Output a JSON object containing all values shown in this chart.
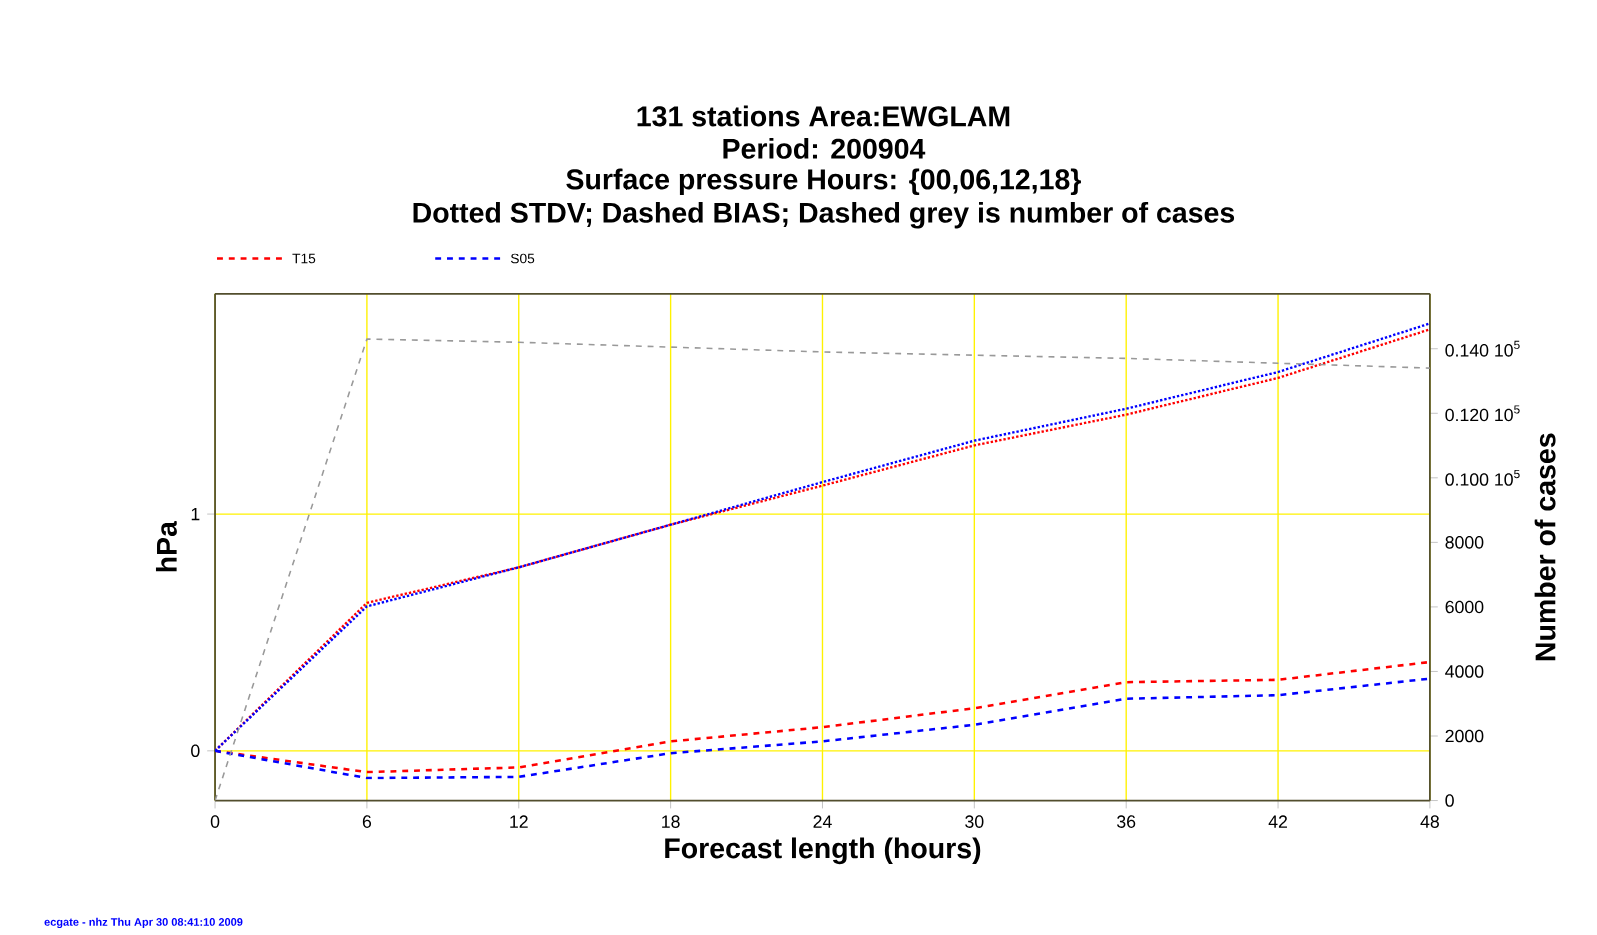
{
  "chart_data": {
    "type": "line",
    "title": "131 stations Area:EWGLAM",
    "subtitle": "Period: 200904",
    "annotations": [
      "Surface pressure Hours: {00,06,12,18}",
      "Dotted STDV; Dashed BIAS; Dashed grey is number of cases",
      "ecgate - nhz Thu Apr 30 08:41:10 2009"
    ],
    "xlabel": "Forecast length (hours)",
    "ylabel": "hPa",
    "y2label": "Number of cases",
    "x": [
      0,
      6,
      12,
      18,
      24,
      30,
      36,
      42,
      48
    ],
    "xlim": [
      0,
      48
    ],
    "xticks": [
      0,
      6,
      12,
      18,
      24,
      30,
      36,
      42,
      48
    ],
    "ylim": [
      -0.21,
      1.93
    ],
    "yticks": [
      0,
      1
    ],
    "y2lim": [
      0,
      15700
    ],
    "y2ticks": [
      0,
      2000,
      4000,
      6000,
      8000,
      {
        "value": 10000,
        "label": "0.100 10$^{5}$"
      },
      {
        "value": 12000,
        "label": "0.120 10$^{5}$"
      },
      {
        "value": 14000,
        "label": "0.140 10$^{5}$"
      }
    ],
    "grid": true,
    "legend": "top left",
    "series": [
      {
        "name": "T15",
        "color": "#ff0000",
        "line_style": "dashed",
        "values": [
          0,
          -0.09,
          -0.07,
          0.04,
          0.1,
          0.18,
          0.29,
          0.3,
          0.375
        ]
      },
      {
        "color": "#ff0000",
        "line_style": "dotted",
        "values": [
          0,
          0.625,
          0.775,
          0.955,
          1.12,
          1.29,
          1.42,
          1.575,
          1.78
        ]
      },
      {
        "name": "S05",
        "color": "#0000ff",
        "line_style": "dashed",
        "values": [
          0,
          -0.115,
          -0.11,
          -0.01,
          0.04,
          0.11,
          0.22,
          0.235,
          0.305
        ]
      },
      {
        "color": "#0000ff",
        "line_style": "dotted",
        "values": [
          0,
          0.61,
          0.775,
          0.955,
          1.135,
          1.31,
          1.445,
          1.6,
          1.805
        ]
      },
      {
        "color": "#999999",
        "line_style": "dashed",
        "axis": "y2",
        "values": [
          0,
          14300,
          14200,
          14050,
          13900,
          13800,
          13700,
          13550,
          13400
        ]
      }
    ]
  }
}
